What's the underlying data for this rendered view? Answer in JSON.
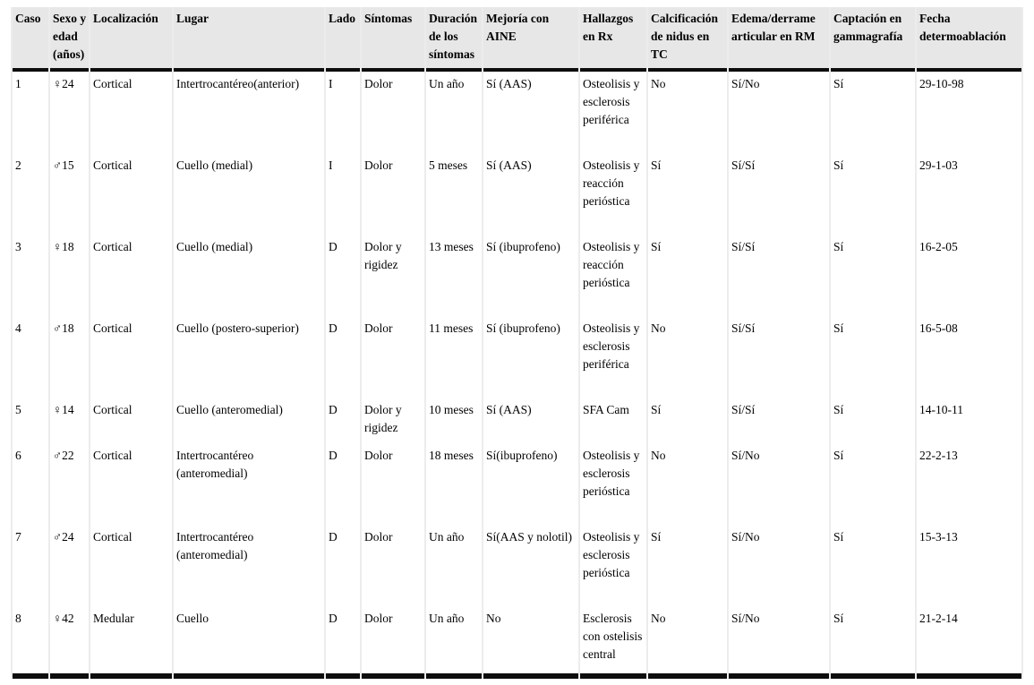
{
  "table": {
    "title": "tabla-casos-osteoma-osteoide",
    "columns": [
      "Caso",
      "Sexo y edad (años)",
      "Localización",
      "Lugar",
      "Lado",
      "Síntomas",
      "Duración de los síntomas",
      "Mejoría con AINE",
      "Hallazgos en Rx",
      "Calcificación de nidus en TC",
      "Edema/derrame articular en RM",
      "Captación en gammagrafía",
      "Fecha determoablación"
    ],
    "rows": [
      [
        "1",
        "♀24",
        "Cortical",
        "Intertrocantéreo(anterior)",
        "I",
        "Dolor",
        "Un año",
        "Sí (AAS)",
        "Osteolisis y esclerosis periférica",
        "No",
        "Sí/No",
        "Sí",
        "29-10-98"
      ],
      [
        "2",
        "♂15",
        "Cortical",
        "Cuello (medial)",
        "I",
        "Dolor",
        "5 meses",
        "Sí (AAS)",
        "Osteolisis y reacción perióstica",
        "Sí",
        "Sí/Sí",
        "Sí",
        "29-1-03"
      ],
      [
        "3",
        "♀18",
        "Cortical",
        "Cuello (medial)",
        "D",
        "Dolor y rigidez",
        "13 meses",
        "Sí (ibuprofeno)",
        "Osteolisis y reacción perióstica",
        "Sí",
        "Sí/Sí",
        "Sí",
        "16-2-05"
      ],
      [
        "4",
        "♂18",
        "Cortical",
        "Cuello (postero-superior)",
        "D",
        "Dolor",
        "11 meses",
        "Sí (ibuprofeno)",
        "Osteolisis y esclerosis periférica",
        "No",
        "Sí/Sí",
        "Sí",
        "16-5-08"
      ],
      [
        "5",
        "♀14",
        "Cortical",
        "Cuello (anteromedial)",
        "D",
        "Dolor y rigidez",
        "10 meses",
        "Sí (AAS)",
        "SFA Cam",
        "Sí",
        "Sí/Sí",
        "Sí",
        "14-10-11"
      ],
      [
        "6",
        "♂22",
        "Cortical",
        "Intertrocantéreo (anteromedial)",
        "D",
        "Dolor",
        "18 meses",
        "Sí(ibuprofeno)",
        "Osteolisis y esclerosis perióstica",
        "No",
        "Sí/No",
        "Sí",
        "22-2-13"
      ],
      [
        "7",
        "♂24",
        "Cortical",
        "Intertrocantéreo (anteromedial)",
        "D",
        "Dolor",
        "Un año",
        "Sí(AAS y nolotil)",
        "Osteolisis y esclerosis perióstica",
        "Sí",
        "Sí/No",
        "Sí",
        "15-3-13"
      ],
      [
        "8",
        "♀42",
        "Medular",
        "Cuello",
        "D",
        "Dolor",
        "Un año",
        "No",
        "Esclerosis con ostelisis central",
        "No",
        "Sí/No",
        "Sí",
        "21-2-14"
      ]
    ]
  },
  "colors": {
    "header_bg": "#e7e7e7",
    "heavy_rule": "#0d0d0d",
    "grid_gap": "#ececec",
    "cell_bg": "#ffffff",
    "text": "#1a1a1a"
  }
}
